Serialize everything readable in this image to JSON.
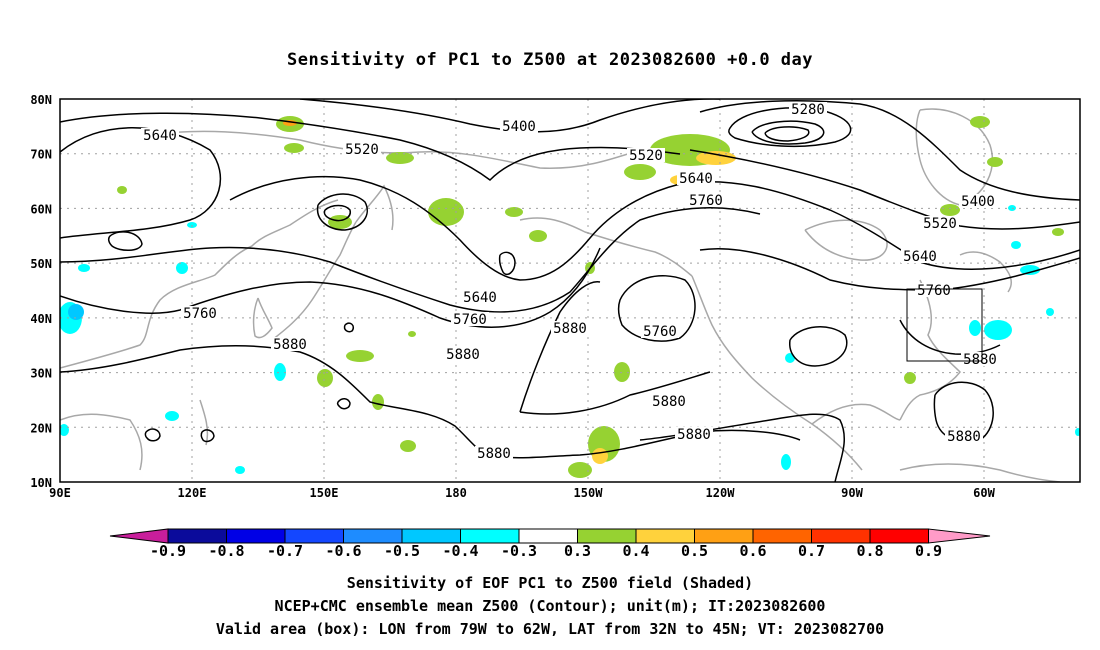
{
  "title": "Sensitivity of PC1 to Z500 at 2023082600 +0.0 day",
  "map": {
    "lat_labels": [
      "80N",
      "70N",
      "60N",
      "50N",
      "40N",
      "30N",
      "20N",
      "10N"
    ],
    "lon_labels": [
      "90E",
      "120E",
      "150E",
      "180",
      "150W",
      "120W",
      "90W",
      "60W"
    ],
    "contour_color": "#000000",
    "coast_color": "#a8a8a8",
    "grid_color": "#a0a0a0",
    "contour_labels": [
      "5280",
      "5400",
      "5400",
      "5520",
      "5520",
      "5520",
      "5640",
      "5640",
      "5640",
      "5640",
      "5760",
      "5760",
      "5760",
      "5760",
      "5760",
      "5880",
      "5880",
      "5880",
      "5880",
      "5880",
      "5880",
      "5880",
      "5880"
    ],
    "valid_area_box": {
      "lon_range": "79W to 62W",
      "lat_range": "32N to 45N"
    }
  },
  "colorbar": {
    "labels": [
      "-0.9",
      "-0.8",
      "-0.7",
      "-0.6",
      "-0.5",
      "-0.4",
      "-0.3",
      "0.3",
      "0.4",
      "0.5",
      "0.6",
      "0.7",
      "0.8",
      "0.9"
    ],
    "colors": [
      "#0b0b9b",
      "#0000e6",
      "#1447ff",
      "#1e8cff",
      "#00c8ff",
      "#00ffff",
      "#ffffff",
      "#96d232",
      "#ffd23c",
      "#ffa014",
      "#ff6400",
      "#ff3200",
      "#ff0000"
    ],
    "left_end_color": "#c81e9b",
    "right_end_color": "#ff9bc8"
  },
  "footer": {
    "line1": "Sensitivity of EOF PC1 to Z500 field (Shaded)",
    "line2": "NCEP+CMC ensemble mean Z500 (Contour); unit(m); IT:2023082600",
    "line3": "Valid area (box): LON from 79W to 62W, LAT from 32N to 45N; VT: 2023082700"
  }
}
